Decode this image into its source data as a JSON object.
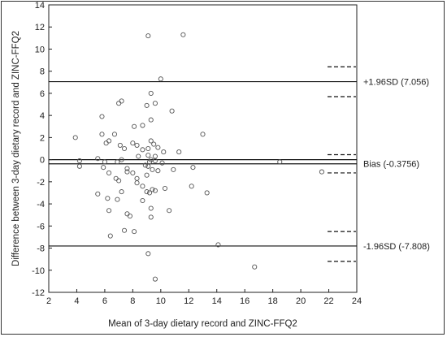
{
  "chart_data": {
    "type": "scatter",
    "title": "",
    "xlabel": "Mean of 3-day dietary record and ZINC-FFQ2",
    "ylabel": "Difference between 3-day dietary record and ZINC-FFQ2",
    "xlim": [
      2,
      24
    ],
    "ylim": [
      -12,
      14
    ],
    "x_ticks": [
      2,
      4,
      6,
      8,
      10,
      12,
      14,
      16,
      18,
      20,
      22,
      24
    ],
    "y_ticks": [
      -12,
      -10,
      -8,
      -6,
      -4,
      -2,
      0,
      2,
      4,
      6,
      8,
      10,
      12,
      14
    ],
    "grid": false,
    "reference_lines": [
      {
        "label": "+1.96SD (7.056)",
        "y": 7.056,
        "ci": [
          5.7,
          8.4
        ]
      },
      {
        "label": "Bias (-0.3756)",
        "y": -0.3756,
        "ci": [
          -1.2,
          0.45
        ]
      },
      {
        "label": "-1.96SD (-7.808)",
        "y": -7.808,
        "ci": [
          -9.2,
          -6.5
        ]
      }
    ],
    "zero_line": 0,
    "points": [
      [
        9.1,
        11.2
      ],
      [
        11.6,
        11.3
      ],
      [
        10.0,
        7.3
      ],
      [
        7.2,
        5.3
      ],
      [
        7.0,
        5.1
      ],
      [
        9.3,
        6.0
      ],
      [
        9.6,
        5.1
      ],
      [
        9.0,
        4.9
      ],
      [
        10.8,
        4.4
      ],
      [
        5.8,
        3.9
      ],
      [
        9.3,
        3.6
      ],
      [
        8.1,
        3.0
      ],
      [
        8.7,
        3.1
      ],
      [
        3.9,
        2.0
      ],
      [
        5.8,
        2.3
      ],
      [
        6.7,
        2.3
      ],
      [
        6.3,
        1.7
      ],
      [
        6.1,
        1.5
      ],
      [
        7.1,
        1.3
      ],
      [
        7.4,
        1.0
      ],
      [
        8.0,
        1.5
      ],
      [
        8.3,
        1.3
      ],
      [
        9.1,
        1.0
      ],
      [
        9.3,
        1.7
      ],
      [
        9.5,
        1.4
      ],
      [
        9.8,
        1.1
      ],
      [
        8.7,
        0.9
      ],
      [
        10.2,
        0.7
      ],
      [
        9.6,
        0.3
      ],
      [
        9.1,
        0.4
      ],
      [
        9.3,
        0.0
      ],
      [
        9.6,
        -0.1
      ],
      [
        8.4,
        0.3
      ],
      [
        4.2,
        -0.1
      ],
      [
        4.2,
        -0.6
      ],
      [
        5.5,
        0.1
      ],
      [
        6.0,
        -0.2
      ],
      [
        6.9,
        -0.2
      ],
      [
        7.2,
        0.0
      ],
      [
        7.6,
        -0.8
      ],
      [
        7.6,
        -1.1
      ],
      [
        8.0,
        -1.2
      ],
      [
        8.3,
        -1.7
      ],
      [
        8.9,
        -0.5
      ],
      [
        9.0,
        -1.4
      ],
      [
        9.1,
        -0.6
      ],
      [
        9.2,
        -0.2
      ],
      [
        9.4,
        -0.9
      ],
      [
        9.8,
        -1.0
      ],
      [
        10.1,
        -0.3
      ],
      [
        10.9,
        -0.9
      ],
      [
        12.3,
        -0.7
      ],
      [
        5.9,
        -0.7
      ],
      [
        6.3,
        -1.2
      ],
      [
        6.8,
        -1.7
      ],
      [
        7.0,
        -1.9
      ],
      [
        7.2,
        -2.9
      ],
      [
        8.3,
        -2.1
      ],
      [
        8.7,
        -2.4
      ],
      [
        9.0,
        -2.9
      ],
      [
        9.4,
        -2.7
      ],
      [
        9.6,
        -2.8
      ],
      [
        9.2,
        -3.0
      ],
      [
        10.3,
        -2.6
      ],
      [
        12.2,
        -2.4
      ],
      [
        13.3,
        -3.0
      ],
      [
        5.5,
        -3.1
      ],
      [
        6.2,
        -3.5
      ],
      [
        6.9,
        -3.6
      ],
      [
        8.7,
        -3.7
      ],
      [
        9.3,
        -4.4
      ],
      [
        6.3,
        -4.6
      ],
      [
        7.6,
        -4.9
      ],
      [
        7.8,
        -5.1
      ],
      [
        9.3,
        -5.2
      ],
      [
        10.6,
        -4.6
      ],
      [
        7.4,
        -6.4
      ],
      [
        8.1,
        -6.5
      ],
      [
        6.4,
        -6.9
      ],
      [
        14.1,
        -7.7
      ],
      [
        9.1,
        -8.5
      ],
      [
        16.7,
        -9.7
      ],
      [
        9.6,
        -10.8
      ],
      [
        18.5,
        -0.2
      ],
      [
        21.5,
        -1.1
      ],
      [
        13.0,
        2.3
      ],
      [
        11.3,
        0.7
      ]
    ]
  }
}
